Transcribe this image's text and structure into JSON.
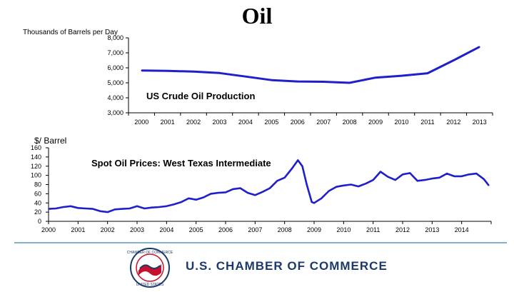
{
  "page": {
    "title": "Oil",
    "org_name": "U.S. CHAMBER OF COMMERCE",
    "logo_text": "CHAMBER OF COMMERCE UNITED STATES OF AMERICA"
  },
  "colors": {
    "line": "#1f1fcc",
    "rule": "#7fb0cc",
    "org": "#1b3a6b"
  },
  "chart_data": [
    {
      "type": "line",
      "title": "US Crude Oil Production",
      "ylabel": "Thousands of Barrels per Day",
      "xlabel": "",
      "ylim": [
        3000,
        8000
      ],
      "yticks": [
        3000,
        4000,
        5000,
        6000,
        7000,
        8000
      ],
      "ytick_labels": [
        "3,000",
        "4,000",
        "5,000",
        "6,000",
        "7,000",
        "8,000"
      ],
      "categories": [
        "2000",
        "2001",
        "2002",
        "2003",
        "2004",
        "2005",
        "2006",
        "2007",
        "2008",
        "2009",
        "2010",
        "2011",
        "2012",
        "2013"
      ],
      "series": [
        {
          "name": "US Crude Oil Production",
          "values": [
            5820,
            5800,
            5750,
            5650,
            5420,
            5180,
            5090,
            5070,
            5000,
            5350,
            5470,
            5640,
            6500,
            7400
          ]
        }
      ]
    },
    {
      "type": "line",
      "title": "Spot Oil Prices: West Texas Intermediate",
      "ylabel": "$/ Barrel",
      "xlabel": "",
      "xlim": [
        2000,
        2015
      ],
      "ylim": [
        0,
        160
      ],
      "yticks": [
        0,
        20,
        40,
        60,
        80,
        100,
        120,
        140,
        160
      ],
      "xtick_labels": [
        "2000",
        "2001",
        "2002",
        "2003",
        "2004",
        "2005",
        "2006",
        "2007",
        "2008",
        "2009",
        "2010",
        "2011",
        "2012",
        "2013",
        "2014"
      ],
      "x": [
        2000.0,
        2000.25,
        2000.5,
        2000.75,
        2001.0,
        2001.25,
        2001.5,
        2001.75,
        2002.0,
        2002.25,
        2002.5,
        2002.75,
        2003.0,
        2003.25,
        2003.5,
        2003.75,
        2004.0,
        2004.25,
        2004.5,
        2004.75,
        2005.0,
        2005.25,
        2005.5,
        2005.75,
        2006.0,
        2006.25,
        2006.5,
        2006.75,
        2007.0,
        2007.25,
        2007.5,
        2007.75,
        2008.0,
        2008.25,
        2008.45,
        2008.6,
        2008.75,
        2008.92,
        2009.0,
        2009.25,
        2009.5,
        2009.75,
        2010.0,
        2010.25,
        2010.5,
        2010.75,
        2011.0,
        2011.25,
        2011.5,
        2011.75,
        2012.0,
        2012.25,
        2012.5,
        2012.75,
        2013.0,
        2013.25,
        2013.5,
        2013.75,
        2014.0,
        2014.25,
        2014.5,
        2014.75,
        2014.92
      ],
      "series": [
        {
          "name": "WTI Spot Price",
          "values": [
            27,
            28,
            31,
            33,
            29,
            28,
            27,
            22,
            20,
            26,
            27,
            28,
            33,
            28,
            30,
            31,
            33,
            37,
            42,
            50,
            47,
            52,
            60,
            62,
            63,
            70,
            72,
            62,
            57,
            64,
            72,
            88,
            95,
            115,
            133,
            120,
            80,
            42,
            40,
            50,
            66,
            75,
            78,
            80,
            76,
            82,
            90,
            108,
            97,
            90,
            102,
            105,
            88,
            90,
            93,
            95,
            104,
            98,
            98,
            102,
            104,
            92,
            78
          ]
        }
      ],
      "annotation": "Spot Oil Prices: West Texas Intermediate"
    }
  ]
}
